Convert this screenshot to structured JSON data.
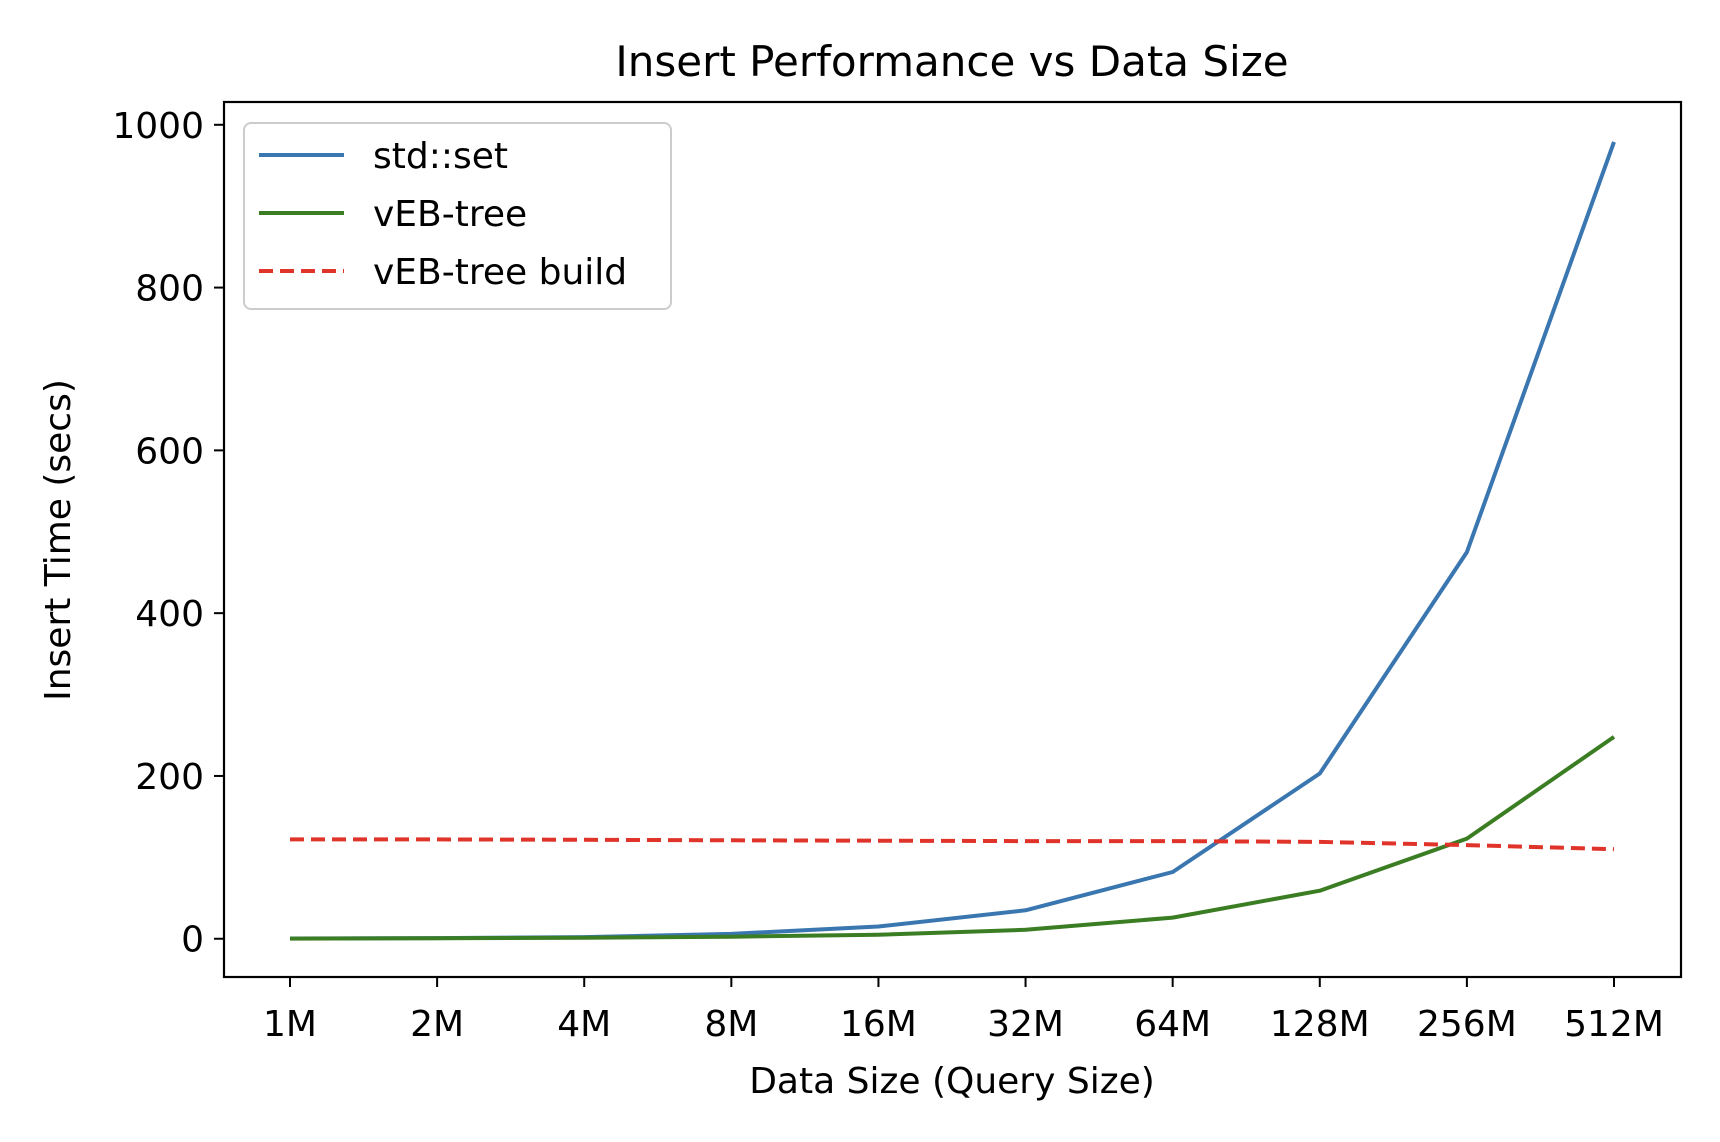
{
  "chart_data": {
    "type": "line",
    "title": "Insert Performance vs Data Size",
    "xlabel": "Data Size (Query Size)",
    "ylabel": "Insert Time (secs)",
    "categories": [
      "1M",
      "2M",
      "4M",
      "8M",
      "16M",
      "32M",
      "64M",
      "128M",
      "256M",
      "512M"
    ],
    "ylim": [
      -47,
      1028
    ],
    "yticks": [
      0,
      200,
      400,
      600,
      800,
      1000
    ],
    "grid": false,
    "legend_position": "top-left",
    "series": [
      {
        "name": "std::set",
        "color": "#3a76af",
        "dash": "solid",
        "values": [
          0.3,
          0.8,
          2,
          6,
          15,
          35,
          82,
          203,
          475,
          979
        ]
      },
      {
        "name": "vEB-tree",
        "color": "#3b7d23",
        "dash": "solid",
        "values": [
          0.2,
          0.5,
          1.2,
          2.5,
          5,
          11,
          26,
          59,
          123,
          248
        ]
      },
      {
        "name": "vEB-tree build",
        "color": "#e0342b",
        "dash": "dashed",
        "values": [
          122,
          122,
          121.5,
          121,
          120.5,
          120,
          120,
          119,
          115,
          110
        ]
      }
    ]
  }
}
